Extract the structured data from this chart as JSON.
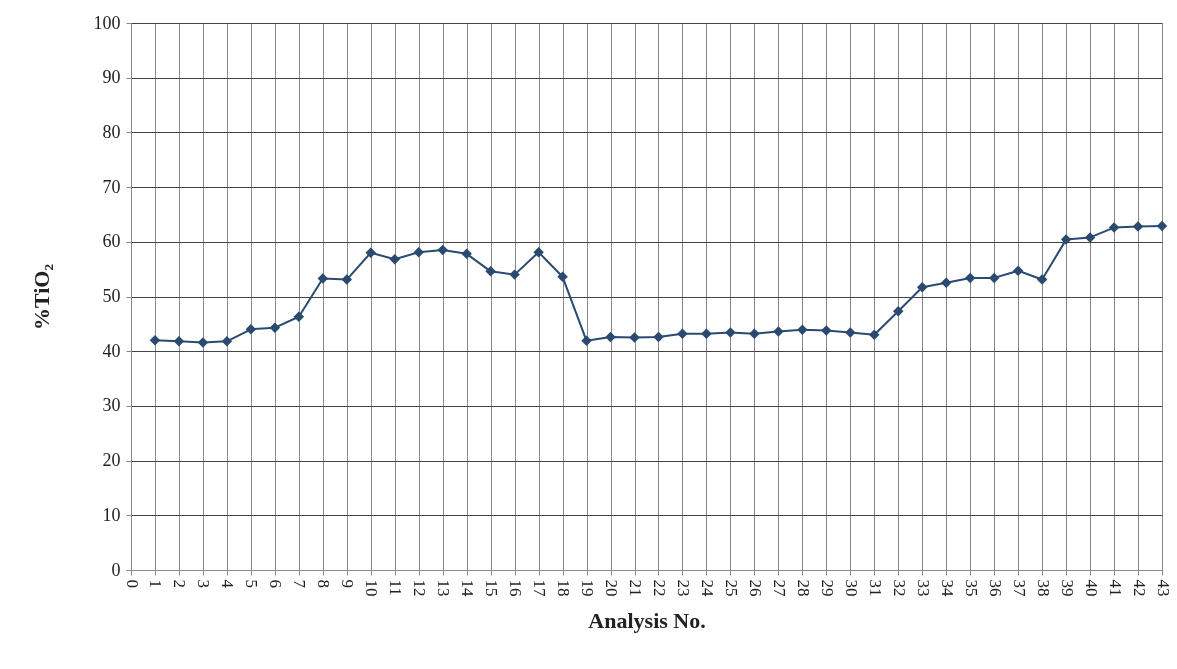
{
  "chart_data": {
    "type": "line",
    "xlabel": "Analysis No.",
    "ylabel": "%TiO₂",
    "x": [
      1,
      2,
      3,
      4,
      5,
      6,
      7,
      8,
      9,
      10,
      11,
      12,
      13,
      14,
      15,
      16,
      17,
      18,
      19,
      20,
      21,
      22,
      23,
      24,
      25,
      26,
      27,
      28,
      29,
      30,
      31,
      32,
      33,
      34,
      35,
      36,
      37,
      38,
      39,
      40,
      41,
      42,
      43
    ],
    "series": [
      {
        "color": "#2b4a70",
        "values": [
          42.0,
          41.8,
          41.6,
          41.8,
          44.0,
          44.3,
          46.3,
          53.3,
          53.1,
          58.0,
          56.8,
          58.1,
          58.5,
          57.8,
          54.6,
          54.0,
          58.1,
          53.6,
          41.9,
          42.6,
          42.5,
          42.6,
          43.2,
          43.2,
          43.4,
          43.2,
          43.6,
          43.9,
          43.8,
          43.4,
          43.0,
          47.3,
          51.7,
          52.5,
          53.4,
          53.4,
          54.7,
          53.1,
          60.4,
          60.8,
          62.6,
          62.8,
          62.9
        ]
      }
    ],
    "xlim": [
      0,
      43
    ],
    "xticks": [
      0,
      1,
      2,
      3,
      4,
      5,
      6,
      7,
      8,
      9,
      10,
      11,
      12,
      13,
      14,
      15,
      16,
      17,
      18,
      19,
      20,
      21,
      22,
      23,
      24,
      25,
      26,
      27,
      28,
      29,
      30,
      31,
      32,
      33,
      34,
      35,
      36,
      37,
      38,
      39,
      40,
      41,
      42,
      43
    ],
    "ylim": [
      0,
      100
    ],
    "yticks": [
      0,
      10,
      20,
      30,
      40,
      50,
      60,
      70,
      80,
      90,
      100
    ],
    "grid": true,
    "marker": "diamond",
    "line_style": "solid"
  }
}
